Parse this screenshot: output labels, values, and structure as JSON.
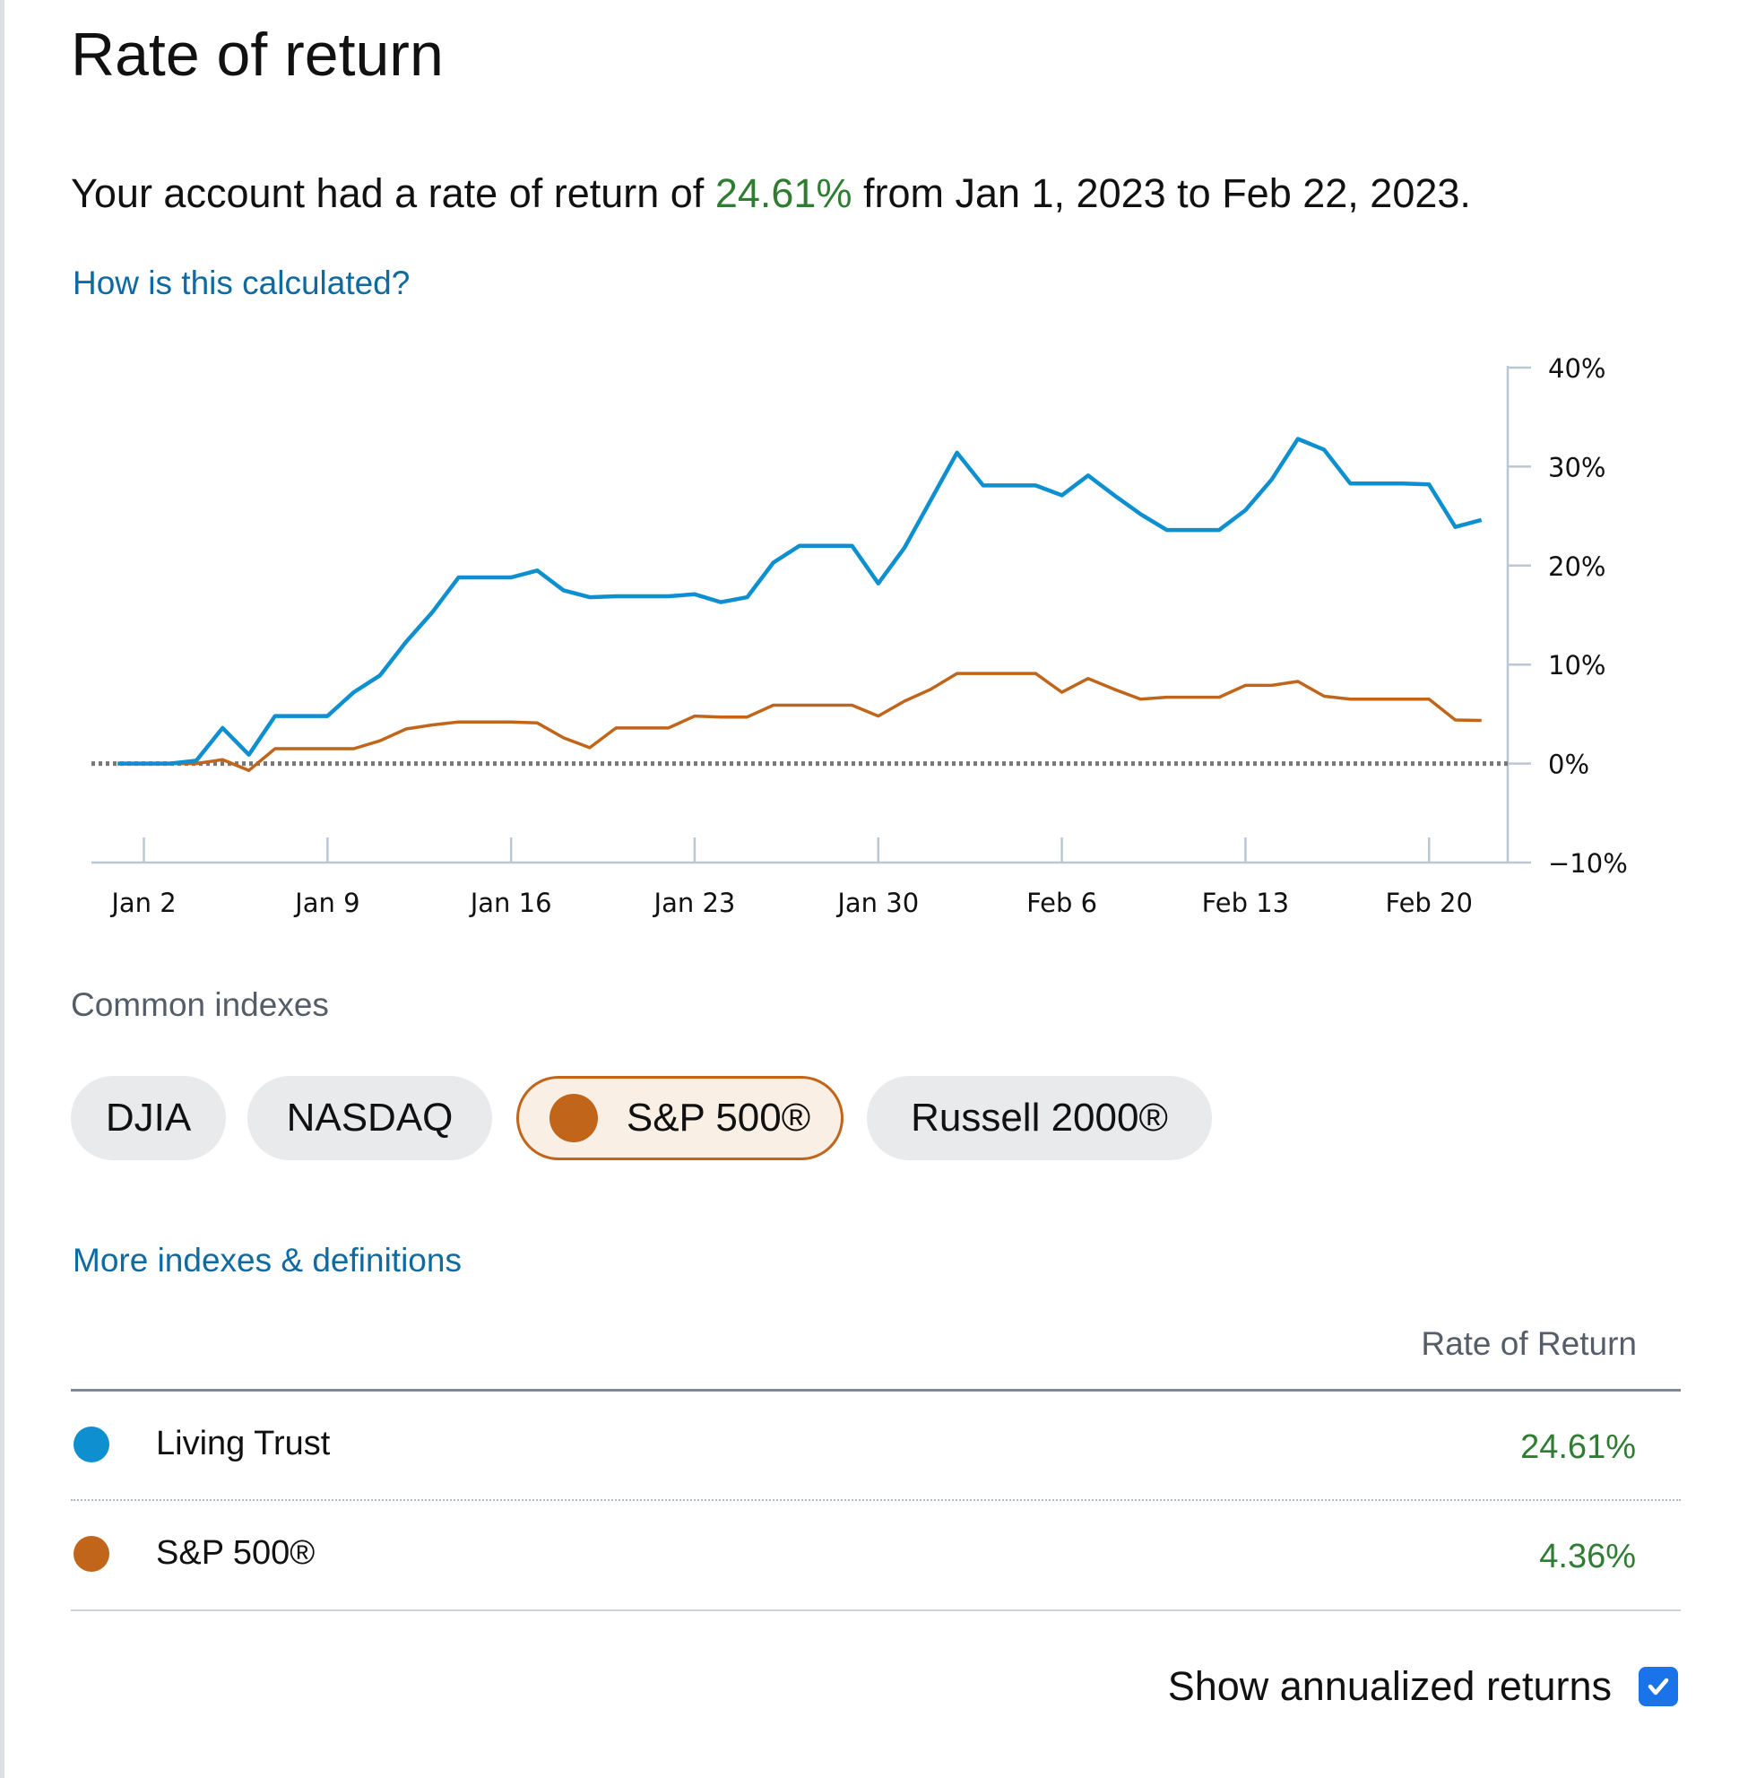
{
  "page": {
    "title": "Rate of return",
    "summary": {
      "prefix": "Your account had a rate of return of ",
      "rate": "24.61%",
      "suffix": " from Jan 1, 2023 to Feb 22, 2023."
    },
    "how_calculated_link": "How is this calculated?"
  },
  "indexes": {
    "label": "Common indexes",
    "chips": [
      {
        "label": "DJIA",
        "active": false
      },
      {
        "label": "NASDAQ",
        "active": false
      },
      {
        "label": "S&P 500®",
        "active": true
      },
      {
        "label": "Russell 2000®",
        "active": false
      }
    ],
    "more_link": "More indexes & definitions"
  },
  "returns_table": {
    "column_header": "Rate of Return",
    "rows": [
      {
        "name": "Living Trust",
        "value": "24.61%",
        "color": "#0d8fd0"
      },
      {
        "name": "S&P 500®",
        "value": "4.36%",
        "color": "#c0651a"
      }
    ]
  },
  "annualized": {
    "label": "Show annualized returns",
    "checked": true
  },
  "colors": {
    "account": "#0d8fd0",
    "index": "#c0651a",
    "positive": "#2e7d32",
    "link": "#0e6aa0"
  },
  "chart_data": {
    "type": "line",
    "x_tick_labels": [
      "Jan 2",
      "Jan 9",
      "Jan 16",
      "Jan 23",
      "Jan 30",
      "Feb 6",
      "Feb 13",
      "Feb 20"
    ],
    "y_tick_labels": [
      "40%",
      "30%",
      "20%",
      "10%",
      "0%",
      "−10%"
    ],
    "ylim": [
      -10,
      40
    ],
    "y_ticks": [
      40,
      30,
      20,
      10,
      0,
      -10
    ],
    "xlim": [
      "2022-12-31",
      "2023-02-23"
    ],
    "x_ticks": [
      "2023-01-02",
      "2023-01-09",
      "2023-01-16",
      "2023-01-23",
      "2023-01-30",
      "2023-02-06",
      "2023-02-13",
      "2023-02-20"
    ],
    "zero_line": "dotted",
    "series": [
      {
        "name": "Living Trust",
        "color": "#0d8fd0",
        "x": [
          "2023-01-01",
          "2023-01-02",
          "2023-01-03",
          "2023-01-04",
          "2023-01-05",
          "2023-01-06",
          "2023-01-07",
          "2023-01-08",
          "2023-01-09",
          "2023-01-10",
          "2023-01-11",
          "2023-01-12",
          "2023-01-13",
          "2023-01-14",
          "2023-01-15",
          "2023-01-16",
          "2023-01-17",
          "2023-01-18",
          "2023-01-19",
          "2023-01-20",
          "2023-01-21",
          "2023-01-22",
          "2023-01-23",
          "2023-01-24",
          "2023-01-25",
          "2023-01-26",
          "2023-01-27",
          "2023-01-28",
          "2023-01-29",
          "2023-01-30",
          "2023-01-31",
          "2023-02-01",
          "2023-02-02",
          "2023-02-03",
          "2023-02-04",
          "2023-02-05",
          "2023-02-06",
          "2023-02-07",
          "2023-02-08",
          "2023-02-09",
          "2023-02-10",
          "2023-02-11",
          "2023-02-12",
          "2023-02-13",
          "2023-02-14",
          "2023-02-15",
          "2023-02-16",
          "2023-02-17",
          "2023-02-18",
          "2023-02-19",
          "2023-02-20",
          "2023-02-21",
          "2023-02-22"
        ],
        "y": [
          0,
          0,
          0,
          0.3,
          3.6,
          0.9,
          4.8,
          4.8,
          4.8,
          7.2,
          8.9,
          12.3,
          15.3,
          18.8,
          18.8,
          18.8,
          19.5,
          17.5,
          16.8,
          16.9,
          16.9,
          16.9,
          17.1,
          16.3,
          16.8,
          20.3,
          22.0,
          22.0,
          22.0,
          18.2,
          21.8,
          26.6,
          31.4,
          28.1,
          28.1,
          28.1,
          27.1,
          29.1,
          27.1,
          25.2,
          23.6,
          23.6,
          23.6,
          25.6,
          28.7,
          32.8,
          31.7,
          28.3,
          28.3,
          28.3,
          28.2,
          23.9,
          24.61
        ]
      },
      {
        "name": "S&P 500®",
        "color": "#c0651a",
        "x": [
          "2023-01-01",
          "2023-01-02",
          "2023-01-03",
          "2023-01-04",
          "2023-01-05",
          "2023-01-06",
          "2023-01-07",
          "2023-01-08",
          "2023-01-09",
          "2023-01-10",
          "2023-01-11",
          "2023-01-12",
          "2023-01-13",
          "2023-01-14",
          "2023-01-15",
          "2023-01-16",
          "2023-01-17",
          "2023-01-18",
          "2023-01-19",
          "2023-01-20",
          "2023-01-21",
          "2023-01-22",
          "2023-01-23",
          "2023-01-24",
          "2023-01-25",
          "2023-01-26",
          "2023-01-27",
          "2023-01-28",
          "2023-01-29",
          "2023-01-30",
          "2023-01-31",
          "2023-02-01",
          "2023-02-02",
          "2023-02-03",
          "2023-02-04",
          "2023-02-05",
          "2023-02-06",
          "2023-02-07",
          "2023-02-08",
          "2023-02-09",
          "2023-02-10",
          "2023-02-11",
          "2023-02-12",
          "2023-02-13",
          "2023-02-14",
          "2023-02-15",
          "2023-02-16",
          "2023-02-17",
          "2023-02-18",
          "2023-02-19",
          "2023-02-20",
          "2023-02-21",
          "2023-02-22"
        ],
        "y": [
          0,
          0,
          0,
          0,
          0.4,
          -0.7,
          1.5,
          1.5,
          1.5,
          1.5,
          2.3,
          3.5,
          3.9,
          4.2,
          4.2,
          4.2,
          4.1,
          2.6,
          1.6,
          3.6,
          3.6,
          3.6,
          4.8,
          4.7,
          4.7,
          5.9,
          5.9,
          5.9,
          5.9,
          4.8,
          6.3,
          7.5,
          9.1,
          9.1,
          9.1,
          9.1,
          7.2,
          8.6,
          7.5,
          6.5,
          6.7,
          6.7,
          6.7,
          7.9,
          7.9,
          8.3,
          6.8,
          6.5,
          6.5,
          6.5,
          6.5,
          4.4,
          4.36
        ]
      }
    ]
  }
}
